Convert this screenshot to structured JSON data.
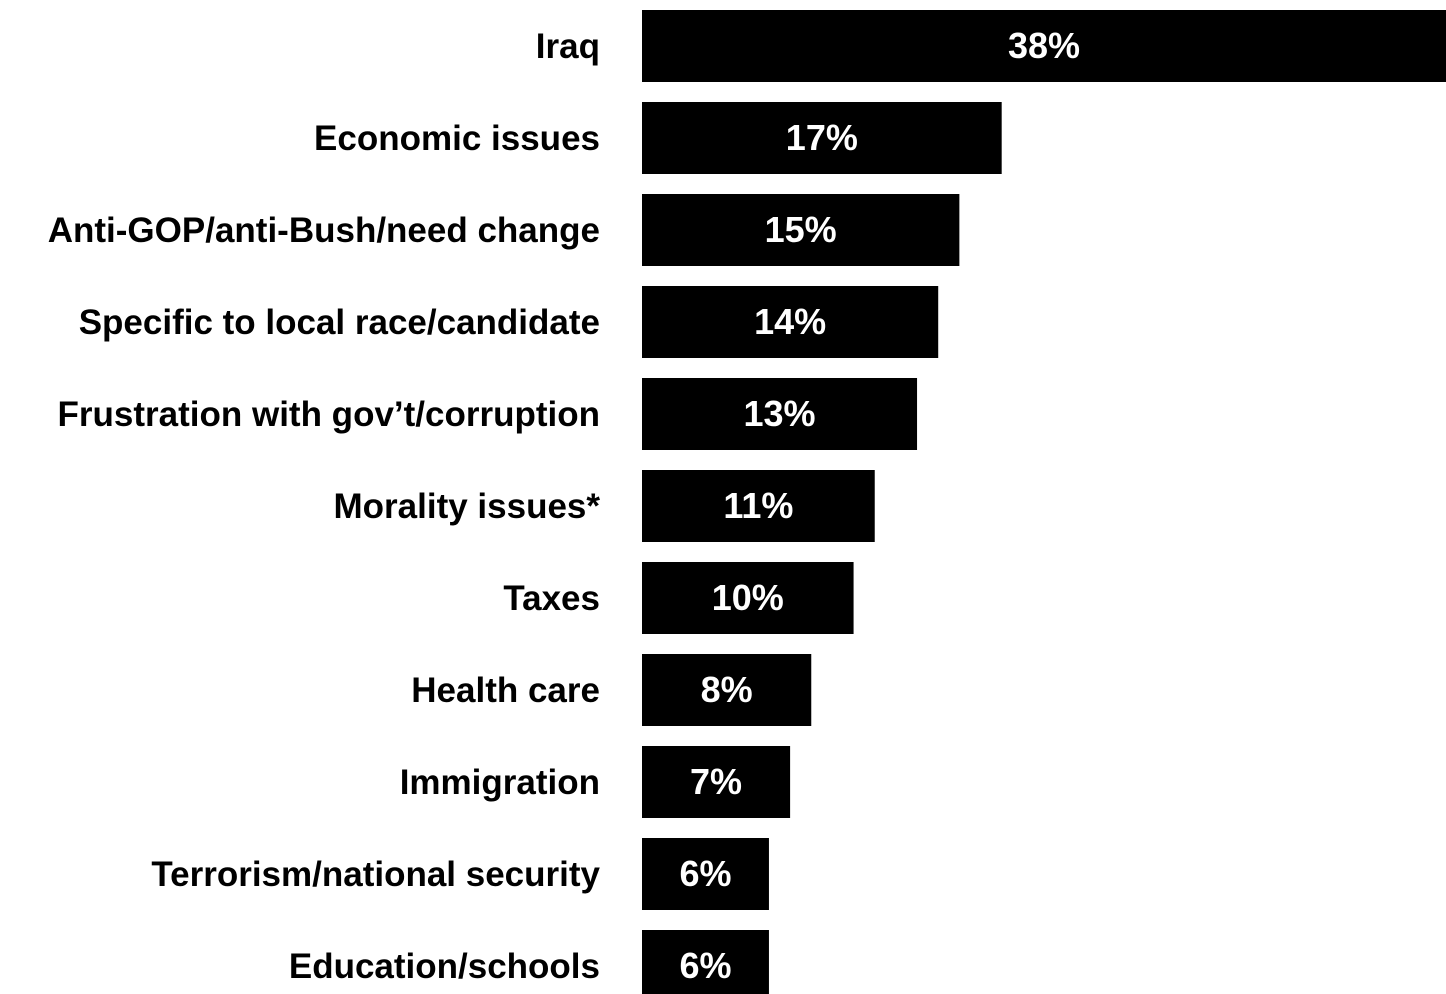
{
  "colors": {
    "bar": "#000000",
    "bar_label": "#ffffff",
    "category_label": "#000000",
    "background": "#ffffff"
  },
  "chart_data": {
    "type": "bar",
    "orientation": "horizontal",
    "title": "",
    "xlabel": "",
    "ylabel": "",
    "categories": [
      "Iraq",
      "Economic issues",
      "Anti-GOP/anti-Bush/need change",
      "Specific to local race/candidate",
      "Frustration with gov’t/corruption",
      "Morality issues*",
      "Taxes",
      "Health care",
      "Immigration",
      "Terrorism/national security",
      "Education/schools"
    ],
    "values": [
      38,
      17,
      15,
      14,
      13,
      11,
      10,
      8,
      7,
      6,
      6
    ],
    "value_labels": [
      "38%",
      "17%",
      "15%",
      "14%",
      "13%",
      "11%",
      "10%",
      "8%",
      "7%",
      "6%",
      "6%"
    ],
    "unit": "%",
    "xlim": [
      0,
      38
    ],
    "grid": false,
    "legend": "none"
  }
}
